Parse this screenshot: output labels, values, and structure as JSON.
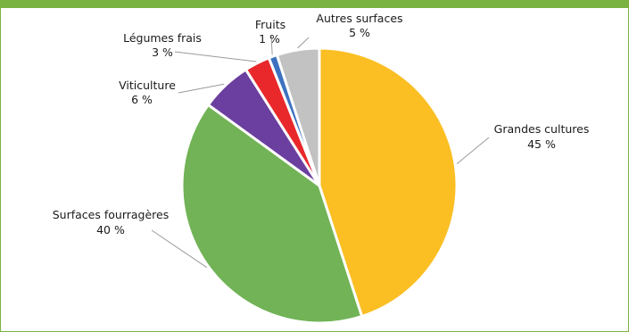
{
  "chart_data": {
    "type": "pie",
    "title": "",
    "unit": "%",
    "slices": [
      {
        "label": "Grandes cultures",
        "value": 45,
        "value_label": "45 %",
        "color": "#fbbf24"
      },
      {
        "label": "Surfaces fourragères",
        "value": 40,
        "value_label": "40 %",
        "color": "#71b356"
      },
      {
        "label": "Viticulture",
        "value": 6,
        "value_label": "6 %",
        "color": "#6b3fa0"
      },
      {
        "label": "Légumes frais",
        "value": 3,
        "value_label": "3 %",
        "color": "#e8282b"
      },
      {
        "label": "Fruits",
        "value": 1,
        "value_label": "1 %",
        "color": "#3c72c0"
      },
      {
        "label": "Autres surfaces",
        "value": 5,
        "value_label": "5 %",
        "color": "#c2c2c2"
      }
    ],
    "start": "12 o'clock",
    "direction": "clockwise",
    "legend": "none"
  }
}
